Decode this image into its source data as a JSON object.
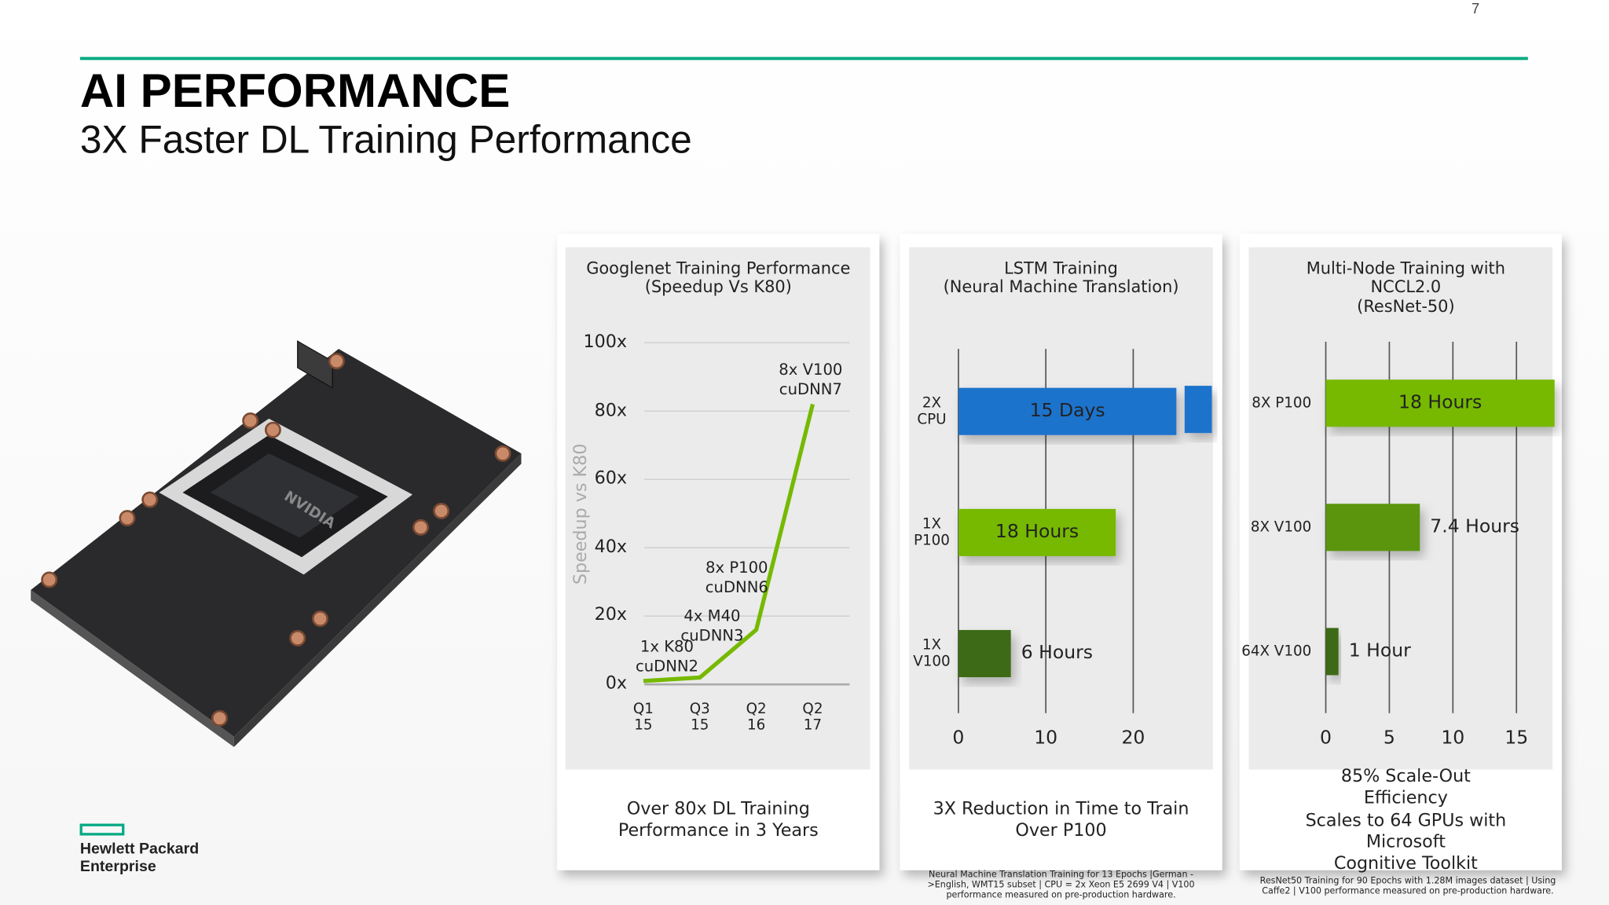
{
  "page_number": "7",
  "header": {
    "title": "AI PERFORMANCE",
    "subtitle": "3X Faster DL Training Performance"
  },
  "logo": {
    "text": "Hewlett Packard\nEnterprise"
  },
  "chart_data": [
    {
      "type": "line",
      "title": "Googlenet Training Performance\n(Speedup Vs K80)",
      "categories": [
        "Q1\n15",
        "Q3\n15",
        "Q2\n16",
        "Q2\n17"
      ],
      "values": [
        1,
        2,
        16,
        82
      ],
      "point_labels": [
        "1x K80\ncuDNN2",
        "4x M40\ncuDNN3",
        "8x P100\ncuDNN6",
        "8x V100\ncuDNN7"
      ],
      "y_label": "Speedup vs K80",
      "color": "#76b900",
      "ylim": [
        0,
        100
      ],
      "yticks": [
        {
          "value": 0,
          "label": "0x"
        },
        {
          "value": 20,
          "label": "20x"
        },
        {
          "value": 40,
          "label": "40x"
        },
        {
          "value": 60,
          "label": "60x"
        },
        {
          "value": 80,
          "label": "80x"
        },
        {
          "value": 100,
          "label": "100x"
        }
      ],
      "grid": true,
      "caption": "Over 80x DL Training\nPerformance in 3 Years"
    },
    {
      "type": "bar",
      "orientation": "horizontal",
      "title": "LSTM Training\n(Neural Machine Translation)",
      "categories": [
        "2X\nCPU",
        "1X\nP100",
        "1X\nV100"
      ],
      "values": [
        360,
        18,
        6
      ],
      "value_labels": [
        "15 Days",
        "18 Hours",
        "6 Hours"
      ],
      "colors": [
        "#1a73cc",
        "#76b900",
        "#3d6b12"
      ],
      "xlim": [
        0,
        29
      ],
      "xticks": [
        0,
        10,
        20
      ],
      "grid": true,
      "axis_break": true,
      "caption": "3X Reduction in Time to Train\nOver P100",
      "footnote": "Neural Machine Translation Training for 13 Epochs |German ->English, WMT15 subset | CPU = 2x Xeon E5 2699 V4 | V100 performance measured on pre-production hardware."
    },
    {
      "type": "bar",
      "orientation": "horizontal",
      "title": "Multi-Node Training with NCCL2.0\n(ResNet-50)",
      "categories": [
        "8X P100",
        "8X V100",
        "64X V100"
      ],
      "values": [
        18,
        7.4,
        1
      ],
      "value_labels": [
        "18 Hours",
        "7.4 Hours",
        "1 Hour"
      ],
      "colors": [
        "#76b900",
        "#5a950a",
        "#3d6b12"
      ],
      "xlim": [
        0,
        18
      ],
      "xticks": [
        0,
        5,
        10,
        15
      ],
      "grid": true,
      "caption": "85% Scale-Out Efficiency\nScales to 64 GPUs with Microsoft\nCognitive Toolkit",
      "footnote": "ResNet50 Training for 90 Epochs with 1.28M images dataset | Using Caffe2 | V100 performance measured on pre-production hardware."
    }
  ]
}
